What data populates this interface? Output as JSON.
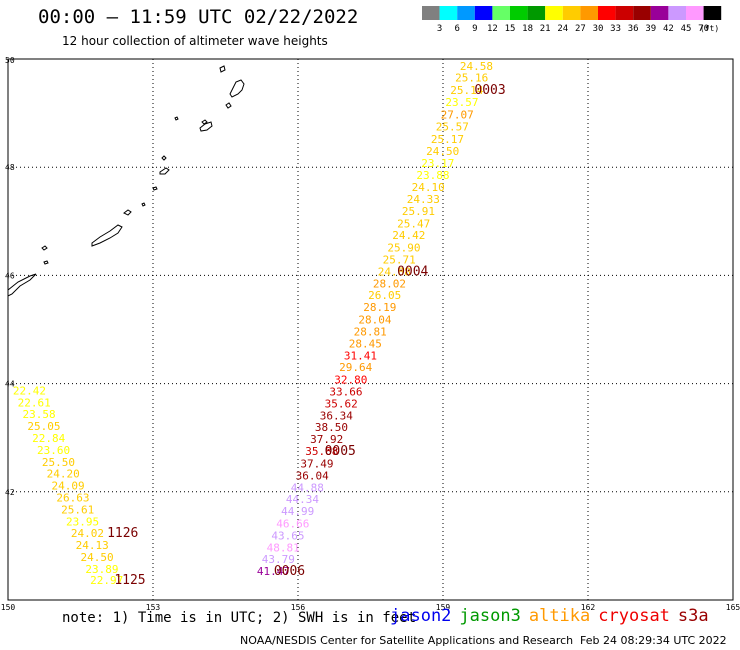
{
  "header": {
    "title": "00:00 – 11:59 UTC 02/22/2022",
    "subtitle": "12 hour collection of altimeter wave heights"
  },
  "colorbar": {
    "unit": "(ft)",
    "colors": [
      "#808080",
      "#00ffff",
      "#0099ff",
      "#0000ff",
      "#66ff66",
      "#00cc00",
      "#009900",
      "#ffff00",
      "#ffcc00",
      "#ff9900",
      "#ff0000",
      "#cc0000",
      "#990000",
      "#990099",
      "#cc99ff",
      "#ff99ff",
      "#000000"
    ],
    "labels": [
      "3",
      "6",
      "9",
      "12",
      "15",
      "18",
      "21",
      "24",
      "27",
      "30",
      "33",
      "36",
      "39",
      "42",
      "45",
      "70"
    ]
  },
  "chart_data": {
    "type": "scatter",
    "title": "00:00 – 11:59 UTC 02/22/2022",
    "subtitle": "12 hour collection of altimeter wave heights",
    "xlim": [
      150,
      165
    ],
    "ylim": [
      40,
      50
    ],
    "x_ticks": [
      "150",
      "153",
      "156",
      "159",
      "162",
      "165"
    ],
    "y_ticks": [
      "40",
      "42",
      "44",
      "46",
      "48",
      "50"
    ],
    "grid": true,
    "series": [
      {
        "name": "altika",
        "points": [
          {
            "lon": 159.35,
            "lat": 49.8,
            "swh": "24.58"
          },
          {
            "lon": 159.25,
            "lat": 49.58,
            "swh": "25.16"
          },
          {
            "lon": 159.15,
            "lat": 49.35,
            "swh": "25.14"
          },
          {
            "lon": 159.05,
            "lat": 49.13,
            "swh": "23.57"
          },
          {
            "lon": 158.95,
            "lat": 48.9,
            "swh": "27.07"
          },
          {
            "lon": 158.85,
            "lat": 48.68,
            "swh": "25.57"
          },
          {
            "lon": 158.75,
            "lat": 48.45,
            "swh": "25.17"
          },
          {
            "lon": 158.65,
            "lat": 48.23,
            "swh": "24.50"
          },
          {
            "lon": 158.55,
            "lat": 48.0,
            "swh": "23.17"
          },
          {
            "lon": 158.45,
            "lat": 47.78,
            "swh": "23.88"
          },
          {
            "lon": 158.35,
            "lat": 47.56,
            "swh": "24.10"
          },
          {
            "lon": 158.25,
            "lat": 47.34,
            "swh": "24.33"
          },
          {
            "lon": 158.15,
            "lat": 47.12,
            "swh": "25.91"
          },
          {
            "lon": 158.05,
            "lat": 46.89,
            "swh": "25.47"
          },
          {
            "lon": 157.95,
            "lat": 46.67,
            "swh": "24.42"
          },
          {
            "lon": 157.85,
            "lat": 46.44,
            "swh": "25.90"
          },
          {
            "lon": 157.75,
            "lat": 46.22,
            "swh": "25.71"
          },
          {
            "lon": 157.65,
            "lat": 46.0,
            "swh": "24.88"
          },
          {
            "lon": 157.55,
            "lat": 45.78,
            "swh": "28.02"
          },
          {
            "lon": 157.45,
            "lat": 45.56,
            "swh": "26.05"
          },
          {
            "lon": 157.35,
            "lat": 45.34,
            "swh": "28.19"
          },
          {
            "lon": 157.25,
            "lat": 45.11,
            "swh": "28.04"
          },
          {
            "lon": 157.15,
            "lat": 44.89,
            "swh": "28.81"
          },
          {
            "lon": 157.05,
            "lat": 44.67,
            "swh": "28.45"
          },
          {
            "lon": 156.95,
            "lat": 44.45,
            "swh": "31.41"
          },
          {
            "lon": 156.85,
            "lat": 44.23,
            "swh": "29.64"
          },
          {
            "lon": 156.75,
            "lat": 44.0,
            "swh": "32.80"
          },
          {
            "lon": 156.65,
            "lat": 43.78,
            "swh": "33.66"
          },
          {
            "lon": 156.55,
            "lat": 43.56,
            "swh": "35.62"
          },
          {
            "lon": 156.45,
            "lat": 43.34,
            "swh": "36.34"
          },
          {
            "lon": 156.35,
            "lat": 43.12,
            "swh": "38.50"
          },
          {
            "lon": 156.25,
            "lat": 42.9,
            "swh": "37.92"
          },
          {
            "lon": 156.15,
            "lat": 42.68,
            "swh": "35.88"
          },
          {
            "lon": 156.05,
            "lat": 42.45,
            "swh": "37.49"
          },
          {
            "lon": 155.95,
            "lat": 42.23,
            "swh": "36.04"
          },
          {
            "lon": 155.85,
            "lat": 42.01,
            "swh": "44.88"
          },
          {
            "lon": 155.75,
            "lat": 41.79,
            "swh": "44.34"
          },
          {
            "lon": 155.65,
            "lat": 41.57,
            "swh": "44.99"
          },
          {
            "lon": 155.55,
            "lat": 41.34,
            "swh": "46.66"
          },
          {
            "lon": 155.45,
            "lat": 41.12,
            "swh": "43.65"
          },
          {
            "lon": 155.35,
            "lat": 40.9,
            "swh": "48.81"
          },
          {
            "lon": 155.25,
            "lat": 40.68,
            "swh": "43.79"
          },
          {
            "lon": 155.15,
            "lat": 40.46,
            "swh": "41.47"
          },
          {
            "lon": 150.1,
            "lat": 43.8,
            "swh": "22.42"
          },
          {
            "lon": 150.2,
            "lat": 43.58,
            "swh": "22.61"
          },
          {
            "lon": 150.3,
            "lat": 43.36,
            "swh": "23.58"
          },
          {
            "lon": 150.4,
            "lat": 43.14,
            "swh": "25.05"
          },
          {
            "lon": 150.5,
            "lat": 42.92,
            "swh": "22.84"
          },
          {
            "lon": 150.6,
            "lat": 42.7,
            "swh": "23.60"
          },
          {
            "lon": 150.7,
            "lat": 42.48,
            "swh": "25.50"
          },
          {
            "lon": 150.8,
            "lat": 42.26,
            "swh": "24.20"
          },
          {
            "lon": 150.9,
            "lat": 42.04,
            "swh": "24.09"
          },
          {
            "lon": 151.0,
            "lat": 41.82,
            "swh": "26.63"
          },
          {
            "lon": 151.1,
            "lat": 41.6,
            "swh": "25.61"
          },
          {
            "lon": 151.2,
            "lat": 41.38,
            "swh": "23.95"
          },
          {
            "lon": 151.3,
            "lat": 41.16,
            "swh": "24.02"
          },
          {
            "lon": 151.4,
            "lat": 40.94,
            "swh": "24.13"
          },
          {
            "lon": 151.5,
            "lat": 40.72,
            "swh": "24.50"
          },
          {
            "lon": 151.6,
            "lat": 40.5,
            "swh": "23.89"
          },
          {
            "lon": 151.7,
            "lat": 40.3,
            "swh": "22.97"
          }
        ]
      }
    ],
    "time_labels": [
      {
        "text": "0003",
        "lon": 159.65,
        "lat": 49.35
      },
      {
        "text": "0004",
        "lon": 158.05,
        "lat": 46.0
      },
      {
        "text": "0005",
        "lon": 156.55,
        "lat": 42.68
      },
      {
        "text": "0006",
        "lon": 155.5,
        "lat": 40.46
      },
      {
        "text": "1126",
        "lon": 152.05,
        "lat": 41.16
      },
      {
        "text": "1125",
        "lon": 152.2,
        "lat": 40.3
      }
    ]
  },
  "notes": {
    "note": "note: 1) Time is in UTC; 2) SWH is in feet",
    "satellites": [
      {
        "label": "jason2",
        "color": "#0000ee"
      },
      {
        "label": "jason3",
        "color": "#009900"
      },
      {
        "label": "altika",
        "color": "#ff9900"
      },
      {
        "label": "cryosat",
        "color": "#ee0000"
      },
      {
        "label": "s3a",
        "color": "#990000"
      }
    ],
    "footer_left": "NOAA/NESDIS Center for Satellite Applications and Research",
    "footer_right": "Feb 24 08:29:34 UTC 2022"
  }
}
